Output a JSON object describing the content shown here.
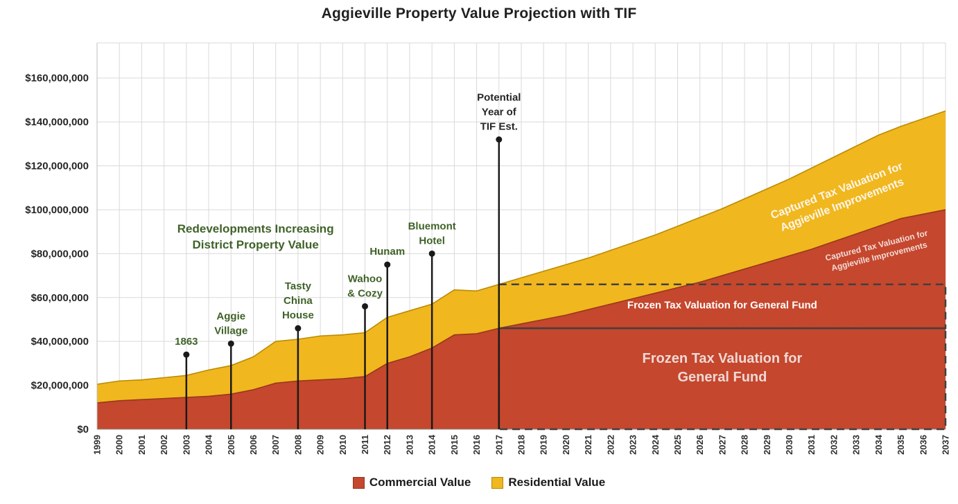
{
  "title": "Aggieville Property Value Projection with TIF",
  "legend": {
    "items": [
      {
        "label": "Commercial Value",
        "color": "#C5472D",
        "border": "#8F3420"
      },
      {
        "label": "Residential Value",
        "color": "#F1B71E",
        "border": "#B08A00"
      }
    ]
  },
  "chart_data": {
    "type": "area",
    "stacked": true,
    "unit": "USD",
    "title": "Aggieville Property Value Projection with TIF",
    "x": [
      1999,
      2000,
      2001,
      2002,
      2003,
      2004,
      2005,
      2006,
      2007,
      2008,
      2009,
      2010,
      2011,
      2012,
      2013,
      2014,
      2015,
      2016,
      2017,
      2018,
      2019,
      2020,
      2021,
      2022,
      2023,
      2024,
      2025,
      2026,
      2027,
      2028,
      2029,
      2030,
      2031,
      2032,
      2033,
      2034,
      2035,
      2036,
      2037
    ],
    "series": [
      {
        "name": "Commercial Value",
        "color": "#C5472D",
        "edge_color": "#97371F",
        "values_millions": [
          12,
          13,
          13.5,
          14,
          14.5,
          15,
          16,
          18,
          21,
          22,
          22.5,
          23,
          24,
          30,
          33,
          37,
          43,
          43.5,
          46,
          48,
          50,
          52,
          54.5,
          57,
          59.5,
          62,
          64.5,
          67,
          70,
          73,
          76,
          79,
          82,
          85.5,
          89,
          92.5,
          96,
          98,
          100
        ]
      },
      {
        "name": "Residential Value",
        "color": "#F1B71E",
        "edge_color": "#BA8B00",
        "values_millions": [
          8.5,
          9,
          9,
          9.5,
          10,
          12,
          13,
          15,
          19,
          19,
          20,
          20,
          20,
          21,
          21,
          20,
          20.5,
          19.5,
          20,
          21,
          22,
          23,
          23.5,
          24.5,
          25.5,
          26.5,
          28,
          29.5,
          30.5,
          32,
          33.5,
          35,
          37,
          38.5,
          40,
          41.5,
          42,
          43.5,
          45
        ]
      }
    ],
    "y_axis": {
      "min": 0,
      "max_gridline": 160000000,
      "plot_max": 176000000,
      "tick_step": 20000000,
      "tick_prefix": "$"
    },
    "x_axis": {
      "label_rotation": -90
    },
    "grid": {
      "horizontal": true,
      "vertical": true,
      "color": "#D9D9D9"
    },
    "event_markers": [
      {
        "year": 2003,
        "value": 34000000,
        "label": "1863",
        "color": "#3F6228"
      },
      {
        "year": 2005,
        "value": 39000000,
        "label": "Aggie\nVillage",
        "color": "#3F6228"
      },
      {
        "year": 2008,
        "value": 46000000,
        "label": "Tasty\nChina\nHouse",
        "color": "#3F6228"
      },
      {
        "year": 2011,
        "value": 56000000,
        "label": "Wahoo\n& Cozy",
        "color": "#3F6228"
      },
      {
        "year": 2012,
        "value": 75000000,
        "label": "Hunam",
        "color": "#3F6228"
      },
      {
        "year": 2014,
        "value": 80000000,
        "label": "Bluemont\nHotel",
        "color": "#3F6228"
      },
      {
        "year": 2017,
        "value": 132000000,
        "label": "Potential\nYear of\nTIF Est.",
        "color": "#262626"
      }
    ],
    "region_labels": [
      {
        "text": "Redevelopments Increasing\nDistrict Property Value",
        "year": 2006.1,
        "value": 86000000,
        "color": "#3F6228",
        "font_size": 17,
        "rotation": 0
      },
      {
        "text": "Frozen Tax Valuation for General Fund",
        "year": 2027,
        "value": 55000000,
        "color": "#FFFFFF",
        "font_size": 15,
        "rotation": 0
      },
      {
        "text": "Frozen Tax Valuation for\nGeneral Fund",
        "year": 2027,
        "value": 26000000,
        "color": "#EFD9D6",
        "font_size": 20,
        "rotation": 0
      },
      {
        "text": "Captured Tax Valuation for\nAggieville Improvements",
        "year": 2032.3,
        "value": 104000000,
        "color": "#FDF6EA",
        "font_size": 16,
        "rotation": -21
      },
      {
        "text": "Captured Tax Valuation for\nAggieville Improvements",
        "year": 2034,
        "value": 80000000,
        "color": "#F3DBD8",
        "font_size": 12,
        "rotation": -14
      }
    ],
    "dashed_boxes": {
      "color": "#404040",
      "width": 2.5,
      "dash": "11 7",
      "boxes": [
        {
          "from_year": 2017,
          "to_year": 2037,
          "from_value": 0,
          "to_value": 46000000
        },
        {
          "from_year": 2017,
          "to_year": 2037,
          "from_value": 46000000,
          "to_value": 66000000
        }
      ]
    }
  }
}
